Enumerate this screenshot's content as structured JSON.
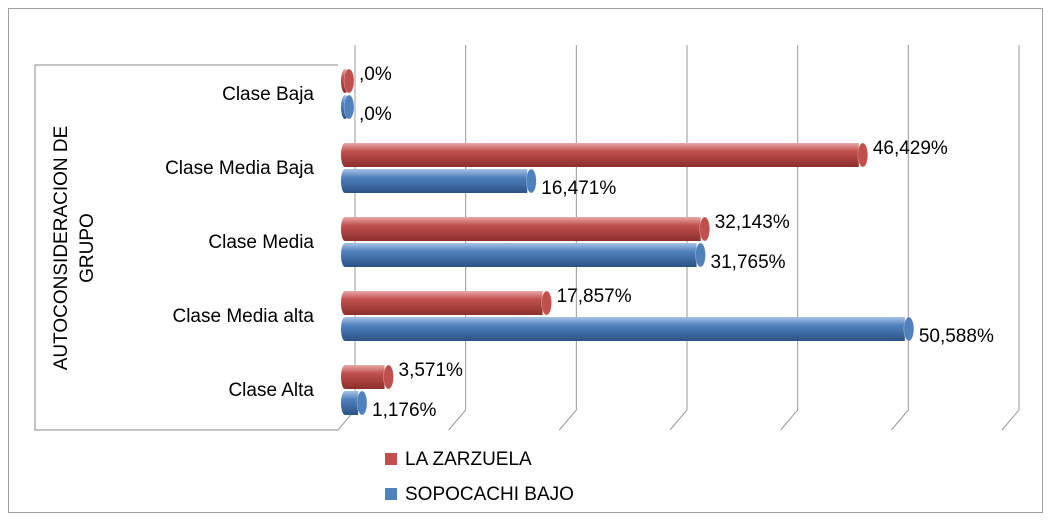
{
  "chart_data": {
    "type": "bar",
    "orientation": "horizontal",
    "y_label": [
      "AUTOCONSIDERACION DE",
      "GRUPO"
    ],
    "categories": [
      "Clase Baja",
      "Clase Media Baja",
      "Clase Media",
      "Clase Media alta",
      "Clase Alta"
    ],
    "series": [
      {
        "name": "LA ZARZUELA",
        "color": "#c0504d",
        "values": [
          0,
          46.429,
          32.143,
          17.857,
          3.571
        ],
        "value_labels": [
          ",0%",
          "46,429%",
          "32,143%",
          "17,857%",
          "3,571%"
        ]
      },
      {
        "name": "SOPOCACHI BAJO",
        "color": "#4f81bd",
        "values": [
          0,
          16.471,
          31.765,
          50.588,
          1.176
        ],
        "value_labels": [
          ",0%",
          "16,471%",
          "31,765%",
          "50,588%",
          "1,176%"
        ]
      }
    ],
    "xlim": [
      0,
      60
    ],
    "xticks": [
      0,
      10,
      20,
      30,
      40,
      50,
      60
    ],
    "grid": true
  }
}
